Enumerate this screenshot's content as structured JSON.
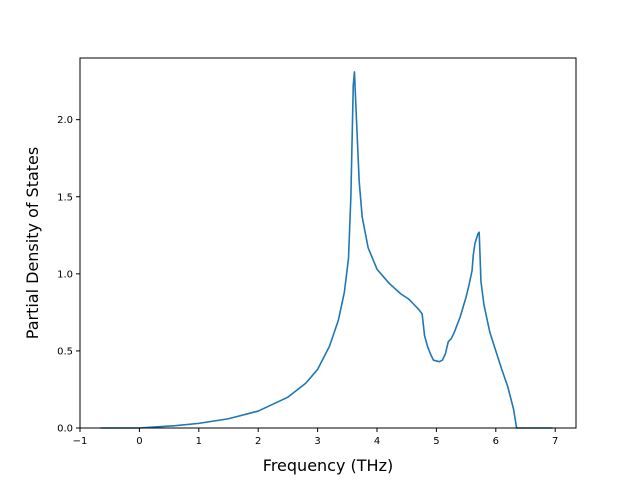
{
  "chart_data": {
    "type": "line",
    "title": "",
    "xlabel": "Frequency (THz)",
    "ylabel": "Partial Density of States",
    "xlim": [
      -1.0,
      7.35
    ],
    "ylim": [
      0.0,
      2.4
    ],
    "xticks": [
      -1,
      0,
      1,
      2,
      3,
      4,
      5,
      6,
      7
    ],
    "yticks": [
      0.0,
      0.5,
      1.0,
      1.5,
      2.0
    ],
    "xtick_labels": [
      "−1",
      "0",
      "1",
      "2",
      "3",
      "4",
      "5",
      "6",
      "7"
    ],
    "ytick_labels": [
      "0.0",
      "0.5",
      "1.0",
      "1.5",
      "2.0"
    ],
    "grid": false,
    "legend": "none",
    "series": [
      {
        "color": "#1f77b4",
        "x": [
          -0.65,
          0.0,
          0.3,
          0.6,
          1.0,
          1.5,
          2.0,
          2.5,
          2.8,
          3.0,
          3.2,
          3.35,
          3.45,
          3.52,
          3.56,
          3.6,
          3.62,
          3.66,
          3.7,
          3.75,
          3.85,
          4.0,
          4.2,
          4.4,
          4.52,
          4.55,
          4.6,
          4.7,
          4.76,
          4.8,
          4.85,
          4.9,
          4.95,
          5.05,
          5.1,
          5.15,
          5.2,
          5.25,
          5.3,
          5.4,
          5.5,
          5.55,
          5.6,
          5.62,
          5.65,
          5.7,
          5.72,
          5.75,
          5.8,
          5.9,
          6.0,
          6.1,
          6.2,
          6.3,
          6.35,
          6.5,
          6.95
        ],
        "y": [
          0.0,
          0.0,
          0.008,
          0.015,
          0.03,
          0.06,
          0.11,
          0.2,
          0.29,
          0.38,
          0.53,
          0.7,
          0.88,
          1.1,
          1.5,
          2.22,
          2.31,
          1.95,
          1.6,
          1.37,
          1.17,
          1.03,
          0.94,
          0.87,
          0.84,
          0.83,
          0.81,
          0.77,
          0.74,
          0.6,
          0.53,
          0.48,
          0.44,
          0.43,
          0.44,
          0.48,
          0.56,
          0.58,
          0.62,
          0.72,
          0.85,
          0.93,
          1.02,
          1.12,
          1.2,
          1.26,
          1.27,
          0.95,
          0.8,
          0.62,
          0.5,
          0.38,
          0.27,
          0.12,
          0.0,
          0.0,
          0.0
        ]
      }
    ]
  }
}
